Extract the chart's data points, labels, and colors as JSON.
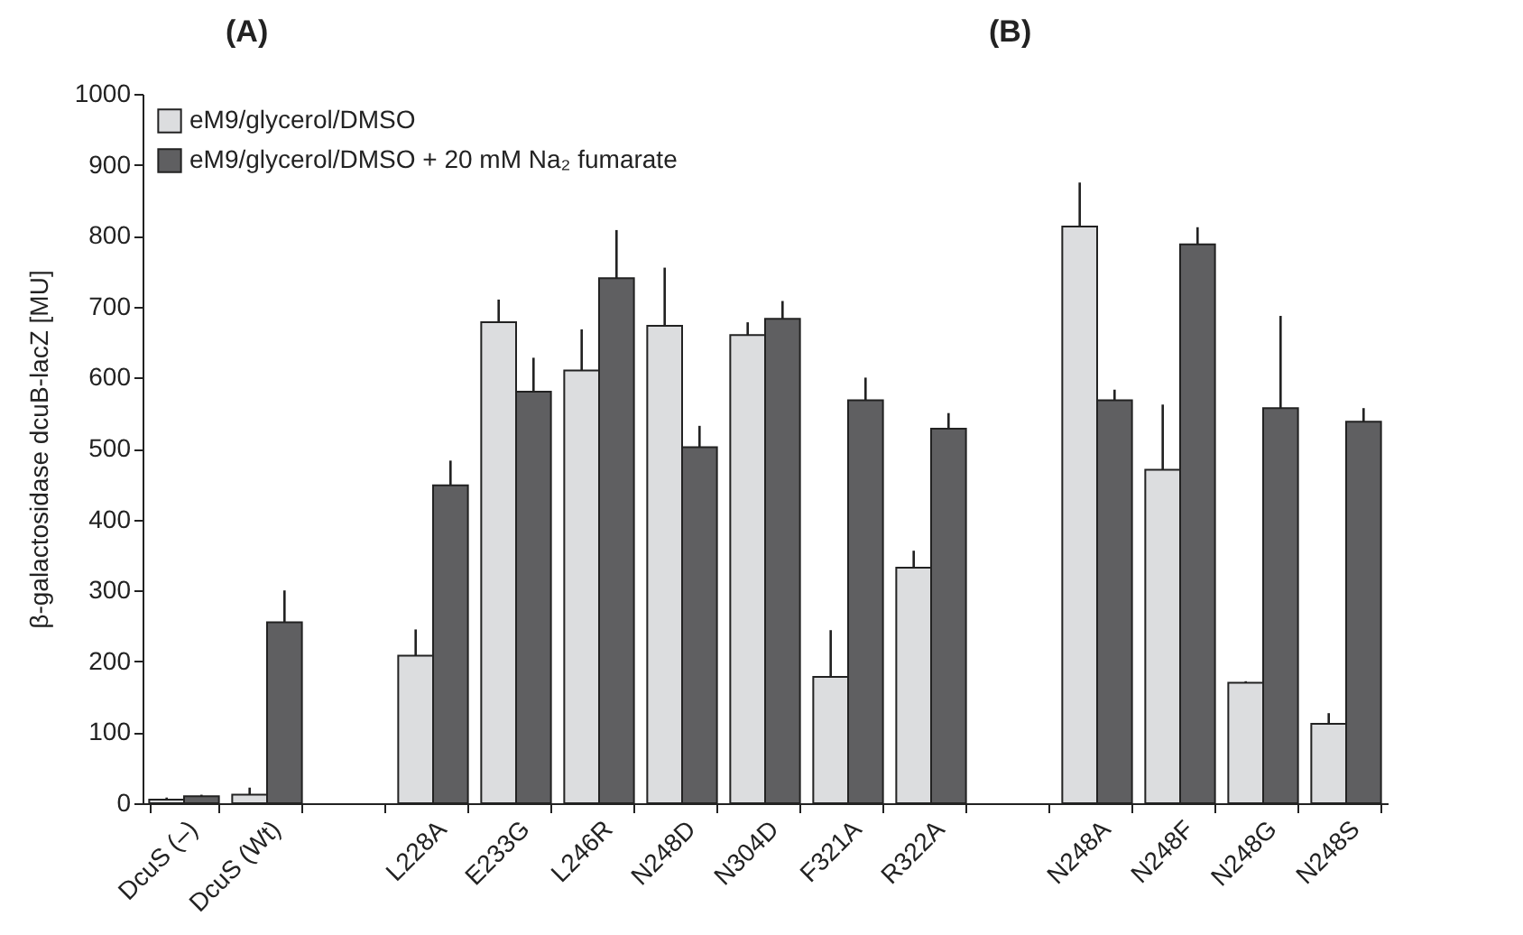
{
  "chart_data": {
    "type": "bar",
    "ylabel": "β-galactosidase dcuB-lacZ [MU]",
    "annotations": [
      "(A)",
      "(B)"
    ],
    "categories": [
      "DcuS (–)",
      "DcuS (Wt)",
      null,
      "L228A",
      "E233G",
      "L246R",
      "N248D",
      "N304D",
      "F321A",
      "R322A",
      null,
      "N248A",
      "N248F",
      "N248G",
      "N248S"
    ],
    "series": [
      {
        "name": "eM9/glycerol/DMSO",
        "color": "#dcdddf",
        "values": [
          5,
          12,
          null,
          208,
          678,
          610,
          673,
          660,
          178,
          332,
          null,
          813,
          470,
          170,
          112
        ],
        "errors": [
          [
            5,
            8
          ],
          [
            12,
            22
          ],
          null,
          [
            208,
            245
          ],
          [
            678,
            710
          ],
          [
            610,
            668
          ],
          [
            673,
            755
          ],
          [
            660,
            678
          ],
          [
            178,
            244
          ],
          [
            332,
            356
          ],
          null,
          [
            813,
            875
          ],
          [
            470,
            562
          ],
          [
            170,
            172
          ],
          [
            112,
            127
          ]
        ]
      },
      {
        "name": "eM9/glycerol/DMSO + 20 mM Na₂ fumarate",
        "color": "#5f5f61",
        "values": [
          10,
          255,
          null,
          448,
          580,
          740,
          502,
          683,
          568,
          528,
          null,
          568,
          788,
          557,
          538
        ],
        "errors": [
          [
            10,
            12
          ],
          [
            255,
            300
          ],
          null,
          [
            448,
            483
          ],
          [
            580,
            628
          ],
          [
            740,
            808
          ],
          [
            502,
            532
          ],
          [
            683,
            708
          ],
          [
            568,
            600
          ],
          [
            528,
            550
          ],
          null,
          [
            568,
            583
          ],
          [
            788,
            812
          ],
          [
            557,
            687
          ],
          [
            538,
            557
          ]
        ]
      }
    ],
    "ylim": [
      0,
      1000
    ],
    "yticks": [
      0,
      100,
      200,
      300,
      400,
      500,
      600,
      700,
      800,
      900,
      1000
    ],
    "legend": "top left"
  }
}
